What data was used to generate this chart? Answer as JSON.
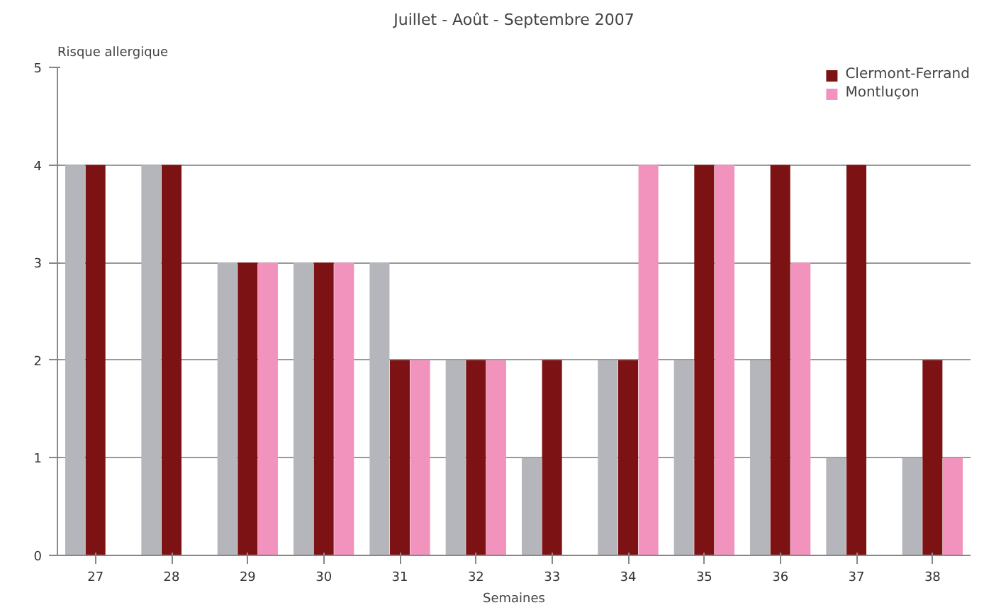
{
  "chart_data": {
    "type": "bar",
    "title": "Juillet - Août - Septembre 2007",
    "xlabel": "Semaines",
    "ylabel": "Risque allergique",
    "categories": [
      "27",
      "28",
      "29",
      "30",
      "31",
      "32",
      "33",
      "34",
      "35",
      "36",
      "37",
      "38"
    ],
    "series": [
      {
        "color": "#b4b6bb",
        "values": [
          4,
          4,
          3,
          3,
          3,
          2,
          1,
          2,
          2,
          2,
          1,
          1
        ]
      },
      {
        "name": "Clermont-Ferrand",
        "color": "#7d1214",
        "values": [
          4,
          4,
          3,
          3,
          2,
          2,
          2,
          2,
          4,
          4,
          4,
          2
        ]
      },
      {
        "name": "Montluçon",
        "color": "#f293bd",
        "values": [
          null,
          null,
          3,
          3,
          2,
          2,
          null,
          4,
          4,
          3,
          null,
          1
        ]
      }
    ],
    "ylim": [
      0,
      5
    ],
    "yticks": [
      0,
      1,
      2,
      3,
      4,
      5
    ],
    "grid": "y",
    "legend": "top right"
  }
}
